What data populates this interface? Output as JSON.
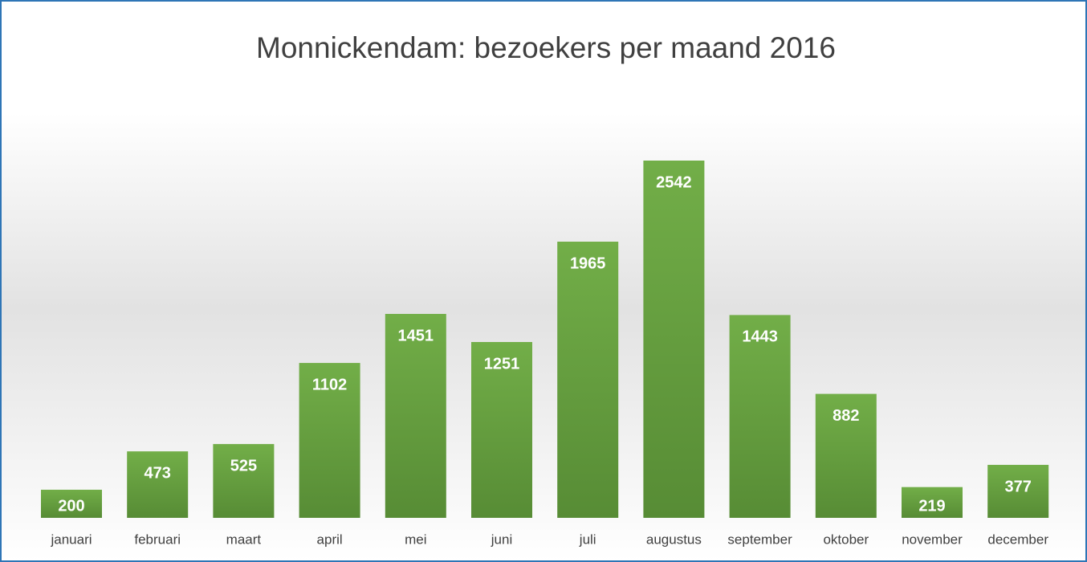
{
  "chart_data": {
    "type": "bar",
    "title": "Monnickendam: bezoekers per maand 2016",
    "categories": [
      "januari",
      "februari",
      "maart",
      "april",
      "mei",
      "juni",
      "juli",
      "augustus",
      "september",
      "oktober",
      "november",
      "december"
    ],
    "values": [
      200,
      473,
      525,
      1102,
      1451,
      1251,
      1965,
      2542,
      1443,
      882,
      219,
      377
    ],
    "color": "#70ad47"
  }
}
